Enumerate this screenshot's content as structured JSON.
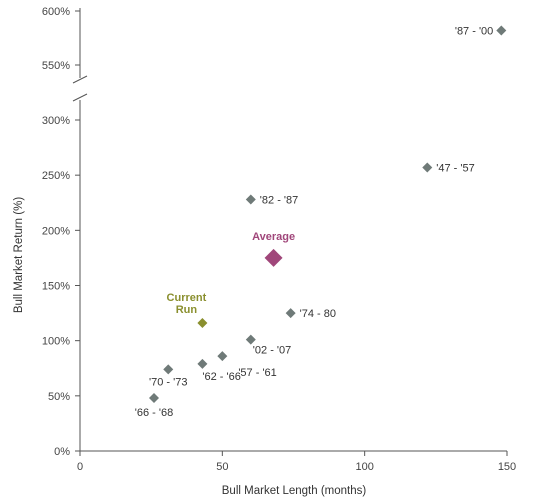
{
  "chart_data": {
    "type": "scatter",
    "xlabel": "Bull Market Length (months)",
    "ylabel": "Bull Market Return (%)",
    "xlim": [
      0,
      150
    ],
    "x_ticks": [
      0,
      50,
      100,
      150
    ],
    "y_ticks_lower": [
      "0%",
      "50%",
      "100%",
      "150%",
      "200%",
      "250%",
      "300%"
    ],
    "y_ticks_upper": [
      "550%",
      "600%"
    ],
    "y_axis_break": true,
    "grid": false,
    "points": [
      {
        "label": "'87 - '00",
        "x": 148,
        "y": 582
      },
      {
        "label": "'47 - '57",
        "x": 122,
        "y": 257
      },
      {
        "label": "'82 - '87",
        "x": 60,
        "y": 228
      },
      {
        "label": "'74 - 80",
        "x": 74,
        "y": 125
      },
      {
        "label": "'02 - '07",
        "x": 60,
        "y": 101
      },
      {
        "label": "'57 - '61",
        "x": 50,
        "y": 86
      },
      {
        "label": "'62 - '66",
        "x": 43,
        "y": 79
      },
      {
        "label": "'70 - '73",
        "x": 31,
        "y": 74
      },
      {
        "label": "'66 - '68",
        "x": 26,
        "y": 48
      }
    ],
    "highlights": [
      {
        "label": "Average",
        "x": 68,
        "y": 175,
        "color": "#a0467a"
      },
      {
        "label": "Current Run",
        "label_lines": [
          "Current",
          "Run"
        ],
        "x": 43,
        "y": 116,
        "color": "#8a8f2e"
      }
    ],
    "point_color": "#6f7a78"
  }
}
